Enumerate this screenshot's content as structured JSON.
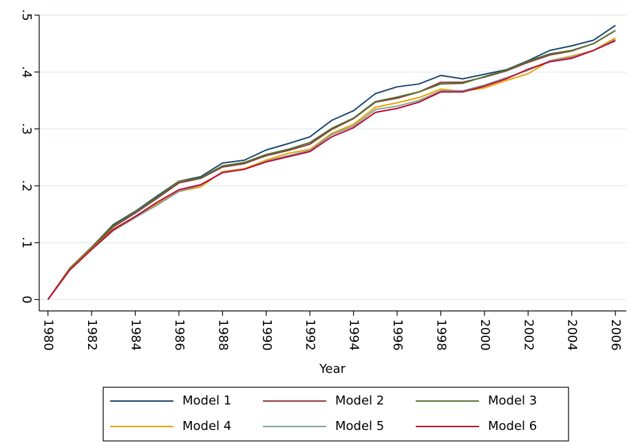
{
  "chart_data": {
    "type": "line",
    "x_label": "Year",
    "x": [
      1980,
      1981,
      1982,
      1983,
      1984,
      1985,
      1986,
      1987,
      1988,
      1989,
      1990,
      1991,
      1992,
      1993,
      1994,
      1995,
      1996,
      1997,
      1998,
      1999,
      2000,
      2001,
      2002,
      2003,
      2004,
      2005,
      2006
    ],
    "series": [
      {
        "name": "Model 1",
        "color": "#1a476f",
        "values": [
          0,
          0.055,
          0.092,
          0.132,
          0.155,
          0.182,
          0.208,
          0.216,
          0.24,
          0.245,
          0.263,
          0.274,
          0.286,
          0.315,
          0.332,
          0.362,
          0.374,
          0.379,
          0.394,
          0.388,
          0.396,
          0.404,
          0.42,
          0.438,
          0.446,
          0.456,
          0.482
        ]
      },
      {
        "name": "Model 2",
        "color": "#90353b",
        "values": [
          0,
          0.054,
          0.09,
          0.128,
          0.152,
          0.178,
          0.205,
          0.213,
          0.233,
          0.239,
          0.253,
          0.262,
          0.273,
          0.299,
          0.318,
          0.347,
          0.354,
          0.365,
          0.382,
          0.382,
          0.391,
          0.402,
          0.417,
          0.43,
          0.437,
          0.45,
          0.473
        ]
      },
      {
        "name": "Model 3",
        "color": "#55752f",
        "values": [
          0,
          0.055,
          0.092,
          0.13,
          0.154,
          0.18,
          0.208,
          0.214,
          0.235,
          0.241,
          0.255,
          0.264,
          0.276,
          0.301,
          0.319,
          0.348,
          0.356,
          0.365,
          0.379,
          0.38,
          0.392,
          0.403,
          0.419,
          0.432,
          0.438,
          0.45,
          0.473
        ]
      },
      {
        "name": "Model 4",
        "color": "#e8a200",
        "values": [
          0,
          0.053,
          0.089,
          0.124,
          0.146,
          0.168,
          0.19,
          0.198,
          0.225,
          0.23,
          0.245,
          0.257,
          0.264,
          0.292,
          0.308,
          0.338,
          0.346,
          0.355,
          0.37,
          0.366,
          0.372,
          0.385,
          0.397,
          0.42,
          0.428,
          0.438,
          0.46
        ]
      },
      {
        "name": "Model 5",
        "color": "#7fa39b",
        "values": [
          0,
          0.052,
          0.088,
          0.121,
          0.144,
          0.166,
          0.19,
          0.201,
          0.224,
          0.229,
          0.243,
          0.253,
          0.262,
          0.29,
          0.305,
          0.334,
          0.34,
          0.35,
          0.367,
          0.367,
          0.377,
          0.39,
          0.403,
          0.42,
          0.426,
          0.438,
          0.457
        ]
      },
      {
        "name": "Model 6",
        "color": "#c10534",
        "values": [
          0,
          0.052,
          0.088,
          0.123,
          0.146,
          0.171,
          0.193,
          0.202,
          0.223,
          0.229,
          0.242,
          0.251,
          0.26,
          0.286,
          0.302,
          0.329,
          0.336,
          0.347,
          0.365,
          0.365,
          0.375,
          0.388,
          0.405,
          0.418,
          0.424,
          0.438,
          0.455
        ]
      }
    ],
    "xlim": [
      1979.6,
      2006.5
    ],
    "xticks": [
      1980,
      1982,
      1984,
      1986,
      1988,
      1990,
      1992,
      1994,
      1996,
      1998,
      2000,
      2002,
      2004,
      2006
    ],
    "ylim": [
      -0.02,
      0.5
    ],
    "yticks": [
      0,
      {
        "value": 0.1,
        "label": ".1"
      },
      {
        "value": 0.2,
        "label": ".2"
      },
      {
        "value": 0.3,
        "label": ".3"
      },
      {
        "value": 0.4,
        "label": ".4"
      },
      {
        "value": 0.5,
        "label": ".5"
      }
    ],
    "grid": true,
    "legend": "bottom"
  }
}
